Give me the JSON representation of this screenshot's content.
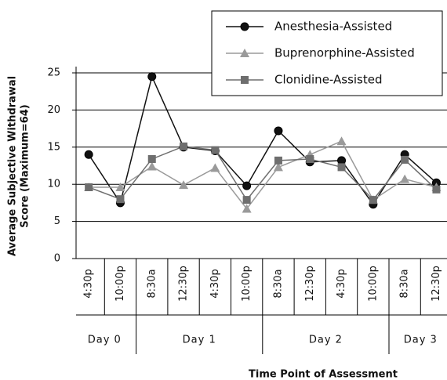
{
  "chart_data": {
    "type": "line",
    "y_label": [
      "Average Subjective Withdrawal",
      "Score (Maximum=64)"
    ],
    "x_label": "Time Point of Assessment",
    "categories": [
      "4:30p",
      "10:00p",
      "8:30a",
      "12:30p",
      "4:30p",
      "10:00p",
      "8:30a",
      "12:30p",
      "4:30p",
      "10:00p",
      "8:30a",
      "12:30p"
    ],
    "groups": [
      {
        "label": "Day 0",
        "span": 2
      },
      {
        "label": "Day 1",
        "span": 4
      },
      {
        "label": "Day 2",
        "span": 4
      },
      {
        "label": "Day 3",
        "span": 2
      }
    ],
    "series": [
      {
        "name": "Anesthesia-Assisted",
        "color": "#111111",
        "marker": "circle",
        "values": [
          14,
          7.5,
          24.5,
          15,
          14.5,
          9.8,
          17.2,
          13,
          13.2,
          7.3,
          14,
          10.2
        ]
      },
      {
        "name": "Buprenorphine-Assisted",
        "color": "#9a9a9a",
        "marker": "triangle",
        "values": [
          9.6,
          9.6,
          12.4,
          9.9,
          12.2,
          6.7,
          12.3,
          14,
          15.8,
          7.9,
          10.7,
          9.6
        ]
      },
      {
        "name": "Clonidine-Assisted",
        "color": "#6e6e6e",
        "marker": "square",
        "values": [
          9.6,
          8,
          13.4,
          15.1,
          14.6,
          7.9,
          13.2,
          13.4,
          12.3,
          7.9,
          13.3,
          9.3
        ]
      }
    ],
    "ylim": [
      0,
      25
    ],
    "yticks": [
      0,
      5,
      10,
      15,
      20,
      25
    ],
    "grid": true,
    "legend": "top-right"
  }
}
